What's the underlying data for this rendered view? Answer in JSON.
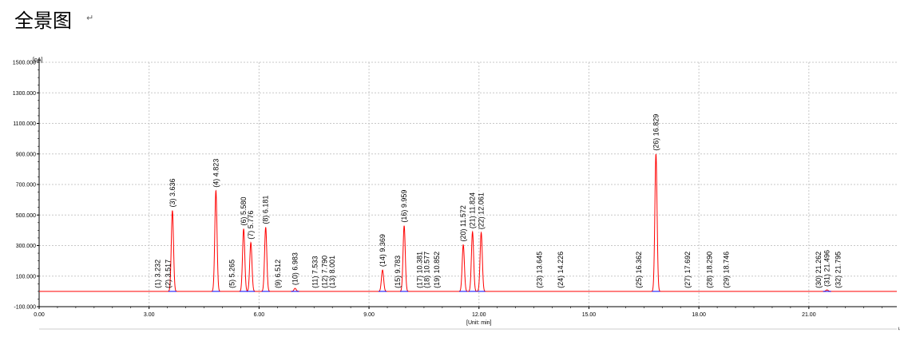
{
  "heading": "全景图",
  "return_mark": "↵",
  "right_mark": "⸤",
  "chart_data": {
    "type": "line",
    "title": "",
    "ylabel": "[pA]",
    "xlabel": "[Unit: min]",
    "xlim": [
      0,
      23.4
    ],
    "ylim": [
      -100,
      1500
    ],
    "x_ticks": [
      0,
      3,
      6,
      9,
      12,
      15,
      18,
      21
    ],
    "x_tick_labels": [
      "0.00",
      "3.00",
      "6.00",
      "9.00",
      "12.00",
      "15.00",
      "18.00",
      "21.00"
    ],
    "y_ticks": [
      -100,
      100,
      300,
      500,
      700,
      900,
      1100,
      1300,
      1500
    ],
    "y_tick_labels": [
      "-100.000",
      "100.000",
      "300.000",
      "500.000",
      "700.000",
      "900.000",
      "1100.000",
      "1300.000",
      "1500.000"
    ],
    "grid": true,
    "baseline": 0,
    "peaks": [
      {
        "label": "(1) 3.232",
        "rt": 3.232,
        "height": 0
      },
      {
        "label": "(2) 3.517",
        "rt": 3.517,
        "height": 0
      },
      {
        "label": "(3) 3.636",
        "rt": 3.636,
        "height": 530
      },
      {
        "label": "(4) 4.823",
        "rt": 4.823,
        "height": 660
      },
      {
        "label": "(5) 5.265",
        "rt": 5.265,
        "height": 0
      },
      {
        "label": "(6) 5.580",
        "rt": 5.58,
        "height": 410
      },
      {
        "label": "(7) 5.776",
        "rt": 5.776,
        "height": 320
      },
      {
        "label": "(8) 6.181",
        "rt": 6.181,
        "height": 420
      },
      {
        "label": "(9) 6.512",
        "rt": 6.512,
        "height": 0
      },
      {
        "label": "(10) 6.983",
        "rt": 6.983,
        "height": 20
      },
      {
        "label": "(11) 7.533",
        "rt": 7.533,
        "height": 0
      },
      {
        "label": "(12) 7.790",
        "rt": 7.79,
        "height": 0
      },
      {
        "label": "(13) 8.001",
        "rt": 8.001,
        "height": 0
      },
      {
        "label": "(14) 9.369",
        "rt": 9.369,
        "height": 140
      },
      {
        "label": "(15) 9.783",
        "rt": 9.783,
        "height": 0
      },
      {
        "label": "(16) 9.959",
        "rt": 9.959,
        "height": 430
      },
      {
        "label": "(17) 10.381",
        "rt": 10.381,
        "height": 0
      },
      {
        "label": "(18) 10.577",
        "rt": 10.577,
        "height": 0
      },
      {
        "label": "(19) 10.852",
        "rt": 10.852,
        "height": 0
      },
      {
        "label": "(20) 11.572",
        "rt": 11.572,
        "height": 305
      },
      {
        "label": "(21) 11.824",
        "rt": 11.824,
        "height": 390
      },
      {
        "label": "(22) 12.061",
        "rt": 12.061,
        "height": 385
      },
      {
        "label": "(23) 13.645",
        "rt": 13.645,
        "height": 0
      },
      {
        "label": "(24) 14.226",
        "rt": 14.226,
        "height": 0
      },
      {
        "label": "(25) 16.362",
        "rt": 16.362,
        "height": 0
      },
      {
        "label": "(26) 16.829",
        "rt": 16.829,
        "height": 900
      },
      {
        "label": "(27) 17.692",
        "rt": 17.692,
        "height": 0
      },
      {
        "label": "(28) 18.290",
        "rt": 18.29,
        "height": 0
      },
      {
        "label": "(29) 18.746",
        "rt": 18.746,
        "height": 0
      },
      {
        "label": "(30) 21.262",
        "rt": 21.262,
        "height": 0
      },
      {
        "label": "(31) 21.496",
        "rt": 21.496,
        "height": 10
      },
      {
        "label": "(32) 21.795",
        "rt": 21.795,
        "height": 0
      }
    ],
    "colors": {
      "signal": "#ff0000",
      "peak_marker": "#0000ff",
      "grid": "#c8c8c8",
      "axis": "#000000"
    }
  }
}
